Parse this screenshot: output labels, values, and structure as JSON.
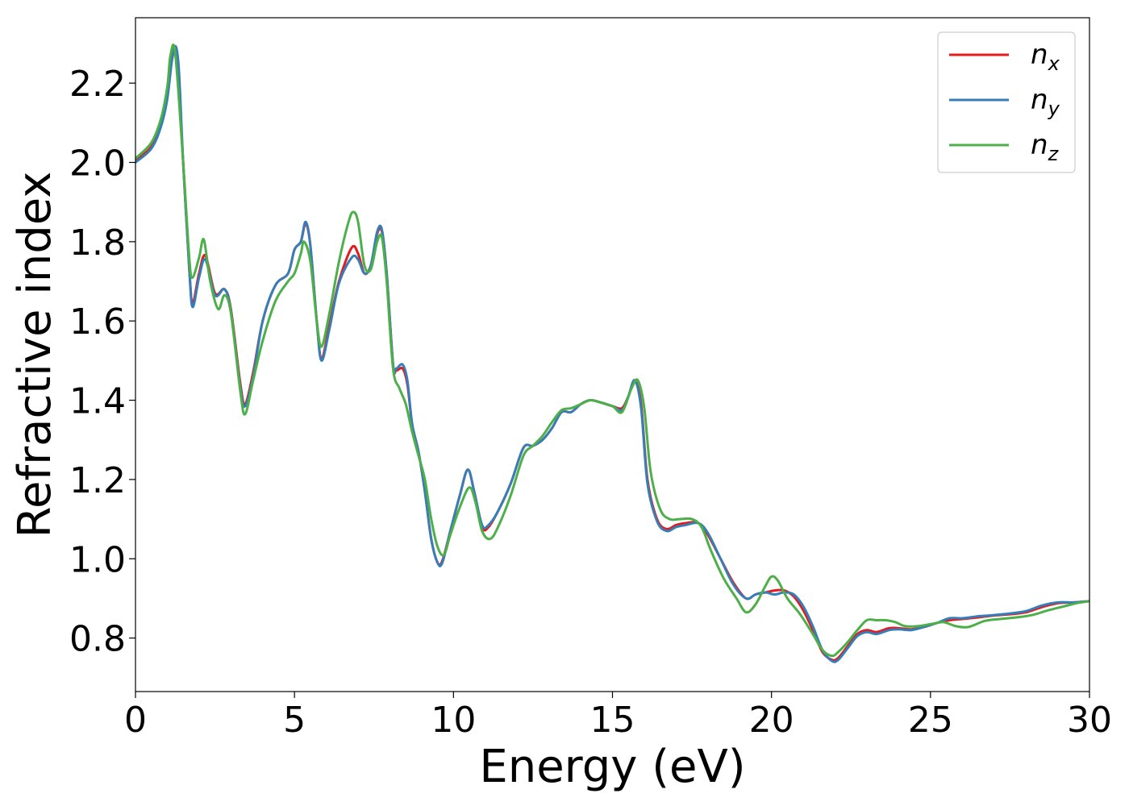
{
  "chart_data": {
    "type": "line",
    "xlabel": "Energy (eV)",
    "ylabel": "Refractive index",
    "xlim": [
      0,
      30
    ],
    "ylim": [
      0.665,
      2.365
    ],
    "xticks": [
      0,
      5,
      10,
      15,
      20,
      25,
      30
    ],
    "xtick_labels": [
      "0",
      "5",
      "10",
      "15",
      "20",
      "25",
      "30"
    ],
    "yticks": [
      0.8,
      1.0,
      1.2,
      1.4,
      1.6,
      1.8,
      2.0,
      2.2
    ],
    "ytick_labels": [
      "0.8",
      "1.0",
      "1.2",
      "1.4",
      "1.6",
      "1.8",
      "2.0",
      "2.2"
    ],
    "grid": false,
    "legend_position": "top-right",
    "legend": [
      {
        "base": "n",
        "sub": "x",
        "color": "#e41a1c"
      },
      {
        "base": "n",
        "sub": "y",
        "color": "#377eb8"
      },
      {
        "base": "n",
        "sub": "z",
        "color": "#4daf4a"
      }
    ],
    "series": [
      {
        "name": "n_x",
        "color": "#e41a1c",
        "x": [
          0,
          0.5,
          0.8,
          1.0,
          1.15,
          1.3,
          1.5,
          1.7,
          1.8,
          2.0,
          2.2,
          2.5,
          2.8,
          3.0,
          3.3,
          3.45,
          3.7,
          4.0,
          4.4,
          4.8,
          5.0,
          5.2,
          5.35,
          5.5,
          5.7,
          5.85,
          6.1,
          6.4,
          6.8,
          7.0,
          7.2,
          7.4,
          7.6,
          7.75,
          7.9,
          8.1,
          8.2,
          8.4,
          8.55,
          8.7,
          8.9,
          9.1,
          9.3,
          9.5,
          9.65,
          9.9,
          10.2,
          10.45,
          10.65,
          10.9,
          11.1,
          11.4,
          11.8,
          12.2,
          12.5,
          12.8,
          13.1,
          13.4,
          13.7,
          14.0,
          14.3,
          14.6,
          15.0,
          15.3,
          15.5,
          15.7,
          15.9,
          16.1,
          16.4,
          16.7,
          17.0,
          17.3,
          17.7,
          18.0,
          18.4,
          18.8,
          19.2,
          19.5,
          19.8,
          20.1,
          20.4,
          20.7,
          21.0,
          21.3,
          21.6,
          21.9,
          22.1,
          22.4,
          22.7,
          23.0,
          23.3,
          23.7,
          24.0,
          24.4,
          24.8,
          25.2,
          25.6,
          26.0,
          26.5,
          27.0,
          27.5,
          28.0,
          28.5,
          29.0,
          29.5,
          30.0
        ],
        "y": [
          2.005,
          2.04,
          2.1,
          2.17,
          2.26,
          2.27,
          2.0,
          1.72,
          1.645,
          1.72,
          1.765,
          1.67,
          1.68,
          1.63,
          1.44,
          1.39,
          1.47,
          1.6,
          1.69,
          1.72,
          1.78,
          1.8,
          1.845,
          1.79,
          1.6,
          1.505,
          1.59,
          1.7,
          1.785,
          1.77,
          1.72,
          1.74,
          1.82,
          1.825,
          1.72,
          1.49,
          1.475,
          1.48,
          1.44,
          1.34,
          1.27,
          1.17,
          1.05,
          0.99,
          0.995,
          1.07,
          1.16,
          1.225,
          1.17,
          1.08,
          1.08,
          1.12,
          1.19,
          1.28,
          1.285,
          1.3,
          1.33,
          1.37,
          1.37,
          1.39,
          1.4,
          1.395,
          1.385,
          1.38,
          1.41,
          1.45,
          1.39,
          1.2,
          1.1,
          1.075,
          1.085,
          1.09,
          1.09,
          1.06,
          1.0,
          0.94,
          0.9,
          0.91,
          0.915,
          0.92,
          0.92,
          0.905,
          0.87,
          0.82,
          0.765,
          0.745,
          0.75,
          0.78,
          0.81,
          0.82,
          0.815,
          0.825,
          0.825,
          0.822,
          0.828,
          0.838,
          0.845,
          0.848,
          0.852,
          0.857,
          0.86,
          0.865,
          0.878,
          0.888,
          0.89,
          0.893
        ]
      },
      {
        "name": "n_y",
        "color": "#377eb8",
        "x": [
          0,
          0.5,
          0.8,
          1.0,
          1.2,
          1.35,
          1.5,
          1.7,
          1.8,
          2.0,
          2.2,
          2.5,
          2.8,
          3.0,
          3.3,
          3.45,
          3.7,
          4.0,
          4.4,
          4.8,
          5.0,
          5.2,
          5.35,
          5.5,
          5.7,
          5.85,
          6.1,
          6.4,
          6.8,
          7.0,
          7.2,
          7.4,
          7.6,
          7.75,
          7.9,
          8.1,
          8.2,
          8.4,
          8.55,
          8.7,
          8.9,
          9.1,
          9.3,
          9.5,
          9.65,
          9.9,
          10.2,
          10.45,
          10.65,
          10.9,
          11.1,
          11.4,
          11.8,
          12.2,
          12.5,
          12.8,
          13.1,
          13.4,
          13.7,
          14.0,
          14.3,
          14.6,
          15.0,
          15.3,
          15.5,
          15.7,
          15.9,
          16.1,
          16.4,
          16.7,
          17.0,
          17.3,
          17.7,
          18.0,
          18.4,
          18.8,
          19.2,
          19.5,
          19.8,
          20.1,
          20.4,
          20.7,
          21.0,
          21.3,
          21.6,
          21.9,
          22.1,
          22.4,
          22.7,
          23.0,
          23.3,
          23.7,
          24.0,
          24.4,
          24.8,
          25.2,
          25.6,
          26.0,
          26.5,
          27.0,
          27.5,
          28.0,
          28.5,
          29.0,
          29.5,
          30.0
        ],
        "y": [
          2.0,
          2.035,
          2.09,
          2.16,
          2.285,
          2.25,
          2.0,
          1.72,
          1.635,
          1.71,
          1.755,
          1.665,
          1.68,
          1.625,
          1.43,
          1.385,
          1.46,
          1.6,
          1.69,
          1.72,
          1.78,
          1.8,
          1.85,
          1.79,
          1.6,
          1.5,
          1.58,
          1.695,
          1.76,
          1.755,
          1.72,
          1.74,
          1.825,
          1.83,
          1.72,
          1.49,
          1.48,
          1.49,
          1.45,
          1.34,
          1.27,
          1.17,
          1.05,
          0.99,
          0.99,
          1.07,
          1.16,
          1.225,
          1.17,
          1.085,
          1.085,
          1.12,
          1.19,
          1.28,
          1.285,
          1.3,
          1.33,
          1.37,
          1.37,
          1.39,
          1.4,
          1.395,
          1.385,
          1.375,
          1.41,
          1.45,
          1.38,
          1.19,
          1.095,
          1.07,
          1.08,
          1.085,
          1.09,
          1.065,
          1.0,
          0.935,
          0.9,
          0.91,
          0.915,
          0.91,
          0.915,
          0.91,
          0.88,
          0.83,
          0.77,
          0.742,
          0.745,
          0.775,
          0.805,
          0.815,
          0.81,
          0.82,
          0.822,
          0.82,
          0.828,
          0.838,
          0.85,
          0.85,
          0.855,
          0.858,
          0.862,
          0.868,
          0.882,
          0.89,
          0.89,
          0.893
        ]
      },
      {
        "name": "n_z",
        "color": "#4daf4a",
        "x": [
          0,
          0.5,
          0.8,
          1.0,
          1.1,
          1.25,
          1.5,
          1.7,
          1.8,
          2.0,
          2.15,
          2.35,
          2.6,
          2.8,
          3.0,
          3.3,
          3.45,
          3.7,
          4.0,
          4.4,
          4.8,
          5.0,
          5.2,
          5.3,
          5.5,
          5.7,
          5.85,
          6.1,
          6.4,
          6.7,
          6.85,
          7.0,
          7.2,
          7.4,
          7.6,
          7.75,
          7.9,
          8.1,
          8.3,
          8.5,
          8.7,
          8.9,
          9.1,
          9.3,
          9.5,
          9.7,
          9.9,
          10.2,
          10.5,
          10.7,
          10.9,
          11.15,
          11.4,
          11.8,
          12.2,
          12.5,
          12.8,
          13.1,
          13.4,
          13.7,
          14.0,
          14.3,
          14.6,
          15.0,
          15.3,
          15.6,
          15.8,
          16.0,
          16.2,
          16.5,
          16.8,
          17.1,
          17.5,
          17.8,
          18.1,
          18.5,
          18.9,
          19.2,
          19.5,
          19.8,
          20.0,
          20.2,
          20.5,
          20.9,
          21.3,
          21.6,
          21.9,
          22.1,
          22.4,
          22.7,
          23.0,
          23.3,
          23.6,
          23.9,
          24.2,
          24.6,
          25.0,
          25.4,
          25.8,
          26.2,
          26.7,
          27.2,
          27.7,
          28.2,
          28.7,
          29.2,
          29.6,
          30.0
        ],
        "y": [
          2.01,
          2.05,
          2.11,
          2.19,
          2.27,
          2.275,
          2.0,
          1.75,
          1.71,
          1.76,
          1.805,
          1.7,
          1.63,
          1.665,
          1.62,
          1.42,
          1.365,
          1.45,
          1.55,
          1.65,
          1.7,
          1.72,
          1.77,
          1.8,
          1.75,
          1.6,
          1.535,
          1.62,
          1.75,
          1.85,
          1.875,
          1.85,
          1.74,
          1.73,
          1.8,
          1.81,
          1.7,
          1.48,
          1.43,
          1.39,
          1.32,
          1.26,
          1.2,
          1.1,
          1.03,
          1.01,
          1.06,
          1.13,
          1.18,
          1.14,
          1.07,
          1.05,
          1.08,
          1.16,
          1.26,
          1.285,
          1.31,
          1.345,
          1.375,
          1.38,
          1.39,
          1.4,
          1.395,
          1.385,
          1.37,
          1.43,
          1.45,
          1.38,
          1.22,
          1.125,
          1.1,
          1.1,
          1.1,
          1.08,
          1.02,
          0.95,
          0.9,
          0.865,
          0.885,
          0.93,
          0.955,
          0.945,
          0.9,
          0.86,
          0.81,
          0.77,
          0.755,
          0.765,
          0.79,
          0.82,
          0.845,
          0.845,
          0.845,
          0.84,
          0.83,
          0.83,
          0.835,
          0.84,
          0.83,
          0.828,
          0.843,
          0.848,
          0.852,
          0.858,
          0.87,
          0.88,
          0.888,
          0.893
        ]
      }
    ]
  }
}
